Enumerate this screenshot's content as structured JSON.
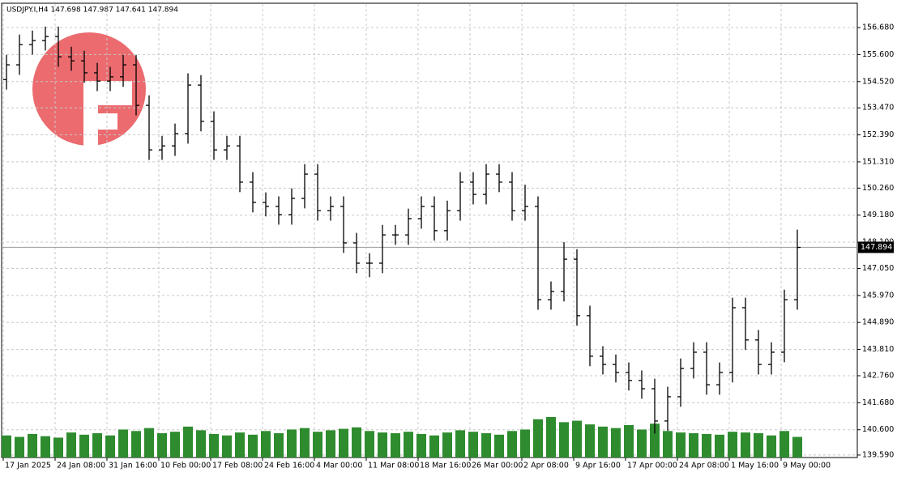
{
  "chart_data": {
    "type": "ohlc",
    "title": "USDJPY.I,H4  147.698 147.987 147.641 147.894",
    "categories": [
      "17 Jan 2025",
      null,
      null,
      null,
      "24 Jan 08:00",
      null,
      null,
      null,
      "31 Jan 16:00",
      null,
      null,
      null,
      "10 Feb 00:00",
      null,
      null,
      null,
      "17 Feb 08:00",
      null,
      null,
      null,
      "24 Feb 16:00",
      null,
      null,
      null,
      "4 Mar 00:00",
      null,
      null,
      null,
      "11 Mar 08:00",
      null,
      null,
      null,
      "18 Mar 16:00",
      null,
      null,
      null,
      "26 Mar 00:00",
      null,
      null,
      null,
      "2 Apr 08:00",
      null,
      null,
      null,
      "9 Apr 16:00",
      null,
      null,
      null,
      "17 Apr 00:00",
      null,
      null,
      null,
      "24 Apr 08:00",
      null,
      null,
      null,
      "1 May 16:00",
      null,
      null,
      null,
      "9 May 00:00",
      null
    ],
    "open": [
      154.6,
      155.19,
      156.0,
      156.16,
      156.32,
      155.51,
      155.35,
      154.87,
      154.54,
      154.71,
      155.19,
      153.57,
      151.79,
      151.95,
      152.44,
      154.38,
      152.93,
      151.79,
      151.95,
      150.5,
      149.69,
      149.53,
      149.2,
      149.85,
      150.82,
      149.36,
      149.53,
      148.07,
      147.26,
      147.26,
      148.39,
      148.39,
      149.04,
      149.53,
      148.56,
      149.36,
      150.5,
      150.01,
      150.82,
      150.5,
      149.36,
      149.53,
      145.8,
      146.13,
      147.42,
      145.16,
      143.54,
      143.21,
      142.89,
      142.57,
      142.24,
      140.95,
      141.92,
      143.05,
      143.7,
      142.4,
      142.89,
      145.48,
      144.19,
      143.21,
      143.7,
      145.8
    ],
    "high": [
      155.59,
      156.4,
      156.56,
      156.72,
      156.72,
      155.91,
      155.75,
      155.27,
      155.11,
      155.59,
      155.59,
      153.97,
      152.35,
      152.84,
      154.85,
      154.78,
      153.33,
      152.35,
      152.35,
      150.9,
      150.09,
      149.93,
      150.25,
      151.22,
      151.22,
      149.93,
      149.93,
      148.47,
      147.66,
      148.79,
      148.79,
      149.44,
      149.93,
      149.93,
      149.76,
      150.9,
      150.9,
      151.22,
      151.22,
      150.9,
      150.4,
      149.93,
      146.53,
      148.1,
      147.82,
      145.56,
      143.94,
      143.61,
      143.29,
      142.97,
      142.64,
      142.32,
      143.45,
      144.1,
      144.1,
      143.29,
      145.88,
      145.88,
      144.59,
      144.1,
      146.2,
      148.6
    ],
    "low": [
      154.2,
      154.79,
      155.6,
      155.76,
      155.11,
      154.95,
      154.47,
      154.14,
      154.14,
      154.31,
      153.17,
      151.39,
      151.39,
      151.55,
      152.04,
      152.53,
      151.39,
      151.39,
      150.1,
      149.29,
      149.13,
      148.8,
      148.8,
      149.45,
      148.96,
      148.96,
      147.67,
      146.86,
      146.7,
      146.86,
      147.99,
      147.99,
      148.64,
      148.16,
      148.16,
      148.96,
      149.61,
      149.61,
      150.1,
      148.96,
      148.96,
      145.4,
      145.4,
      145.73,
      144.76,
      143.14,
      142.81,
      142.49,
      142.17,
      141.84,
      140.45,
      140.55,
      141.52,
      142.65,
      142.0,
      142.0,
      142.49,
      143.79,
      142.81,
      142.81,
      143.3,
      145.4
    ],
    "close": [
      155.19,
      156.0,
      156.16,
      156.32,
      155.51,
      155.35,
      154.87,
      154.54,
      154.71,
      155.19,
      153.57,
      151.79,
      151.95,
      152.44,
      154.38,
      152.93,
      151.79,
      151.95,
      150.5,
      149.69,
      149.53,
      149.2,
      149.85,
      150.82,
      149.36,
      149.53,
      148.07,
      147.26,
      147.26,
      148.39,
      148.39,
      149.04,
      149.53,
      148.56,
      149.36,
      150.5,
      150.01,
      150.82,
      150.5,
      149.36,
      149.53,
      145.8,
      146.13,
      147.42,
      145.16,
      143.54,
      143.21,
      142.89,
      142.57,
      142.24,
      140.95,
      141.92,
      143.05,
      143.7,
      142.4,
      142.89,
      145.48,
      144.19,
      143.21,
      143.7,
      145.8,
      147.89
    ],
    "volume": [
      30,
      28,
      32,
      29,
      27,
      34,
      31,
      33,
      30,
      38,
      36,
      40,
      33,
      35,
      42,
      37,
      32,
      30,
      34,
      31,
      36,
      33,
      38,
      40,
      35,
      37,
      39,
      41,
      36,
      34,
      33,
      35,
      32,
      30,
      34,
      37,
      35,
      33,
      31,
      36,
      38,
      52,
      55,
      48,
      50,
      45,
      42,
      40,
      44,
      38,
      46,
      36,
      34,
      33,
      32,
      31,
      35,
      34,
      33,
      30,
      36,
      28
    ],
    "color": "#000000",
    "volume_color": "#2e8b2e",
    "last_price": 147.894,
    "ylim": [
      139.49,
      157.62
    ],
    "yticks": [
      {
        "value": 139.59,
        "label": "139.590"
      },
      {
        "value": 140.6,
        "label": "140.600"
      },
      {
        "value": 141.68,
        "label": "141.680"
      },
      {
        "value": 142.76,
        "label": "142.760"
      },
      {
        "value": 143.81,
        "label": "143.810"
      },
      {
        "value": 144.89,
        "label": "144.890"
      },
      {
        "value": 145.97,
        "label": "145.970"
      },
      {
        "value": 147.05,
        "label": "147.050"
      },
      {
        "value": 148.1,
        "label": "148.100"
      },
      {
        "value": 149.18,
        "label": "149.180"
      },
      {
        "value": 150.26,
        "label": "150.260"
      },
      {
        "value": 151.31,
        "label": "151.310"
      },
      {
        "value": 152.39,
        "label": "152.390"
      },
      {
        "value": 153.47,
        "label": "153.470"
      },
      {
        "value": 154.52,
        "label": "154.520"
      },
      {
        "value": 155.6,
        "label": "155.600"
      },
      {
        "value": 156.68,
        "label": "156.680"
      }
    ],
    "grid": true
  }
}
